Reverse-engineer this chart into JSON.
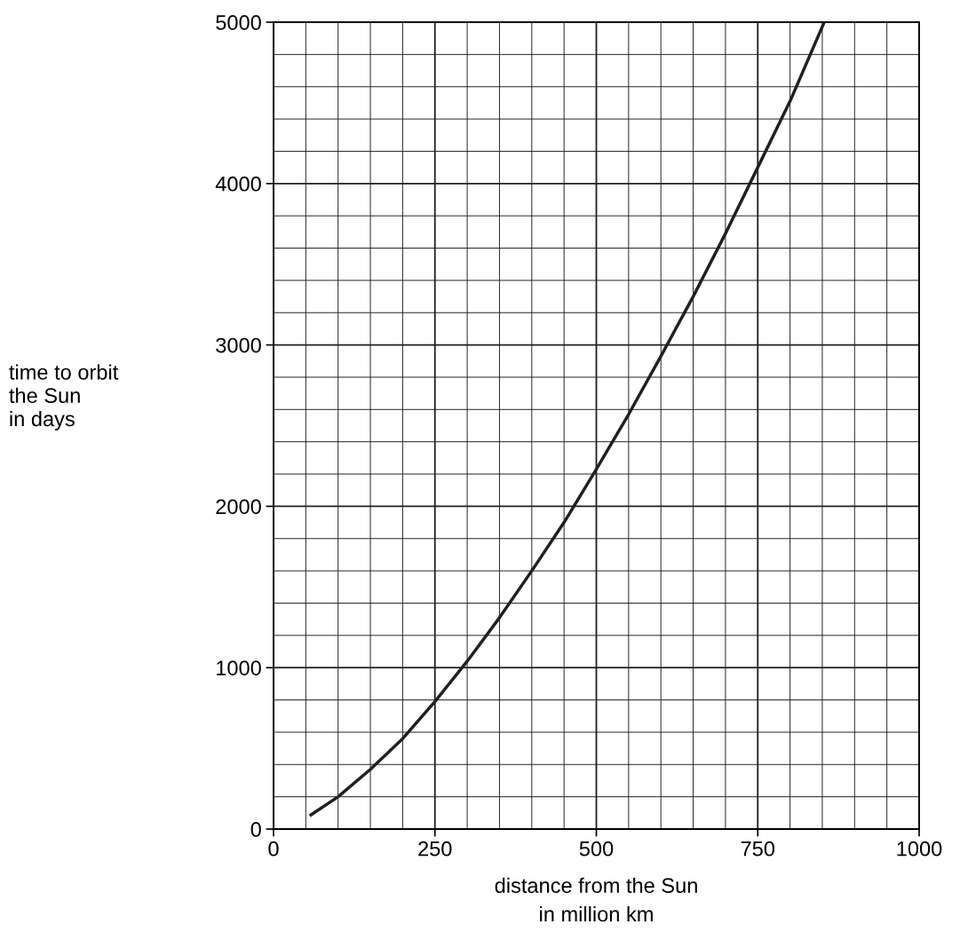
{
  "chart_data": {
    "type": "line",
    "xlabel": "distance from the Sun\nin million km",
    "ylabel": "time to orbit\nthe Sun\nin days",
    "x": [
      58,
      100,
      150,
      200,
      250,
      300,
      350,
      400,
      450,
      500,
      550,
      600,
      650,
      700,
      750,
      800,
      853
    ],
    "series": [
      {
        "color": "#231f20",
        "values": [
          88,
          200,
          370,
          560,
          790,
          1040,
          1310,
          1600,
          1900,
          2230,
          2570,
          2930,
          3300,
          3690,
          4100,
          4510,
          5000
        ]
      }
    ],
    "xlim": [
      0,
      1000
    ],
    "xticks": [
      0,
      250,
      500,
      750,
      1000
    ],
    "ylim": [
      0,
      5000
    ],
    "yticks": [
      0,
      1000,
      2000,
      3000,
      4000,
      5000
    ],
    "grid": true,
    "marker": "none",
    "line_style": "solid",
    "legend": false
  }
}
